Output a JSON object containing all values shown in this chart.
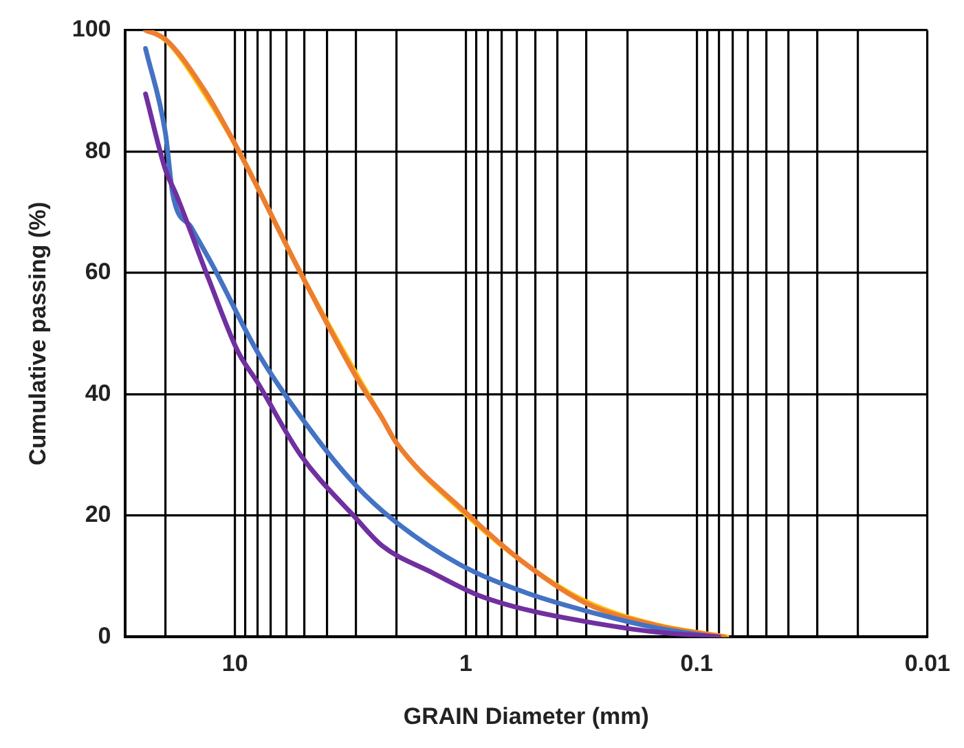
{
  "chart_data": {
    "type": "line",
    "xlabel": "GRAIN Diameter (mm)",
    "ylabel": "Cumulative passing (%)",
    "log": "x",
    "xlim": [
      30,
      0.01
    ],
    "ylim": [
      0,
      100
    ],
    "yticks": [
      0,
      20,
      40,
      60,
      80,
      100
    ],
    "xticks": [
      {
        "value": 20,
        "label": null
      },
      10,
      {
        "value": 9,
        "label": null
      },
      {
        "value": 8,
        "label": null
      },
      {
        "value": 7,
        "label": null
      },
      {
        "value": 6,
        "label": null
      },
      {
        "value": 5,
        "label": null
      },
      {
        "value": 4,
        "label": null
      },
      {
        "value": 3,
        "label": null
      },
      {
        "value": 2,
        "label": null
      },
      1,
      {
        "value": 0.9,
        "label": null
      },
      {
        "value": 0.8,
        "label": null
      },
      {
        "value": 0.7,
        "label": null
      },
      {
        "value": 0.6,
        "label": null
      },
      {
        "value": 0.5,
        "label": null
      },
      {
        "value": 0.4,
        "label": null
      },
      {
        "value": 0.3,
        "label": null
      },
      {
        "value": 0.2,
        "label": null
      },
      0.1,
      {
        "value": 0.09,
        "label": null
      },
      {
        "value": 0.08,
        "label": null
      },
      {
        "value": 0.07,
        "label": null
      },
      {
        "value": 0.06,
        "label": null
      },
      {
        "value": 0.05,
        "label": null
      },
      {
        "value": 0.04,
        "label": null
      },
      {
        "value": 0.03,
        "label": null
      },
      {
        "value": 0.02,
        "label": null
      },
      0.01
    ],
    "grid": true,
    "legend": false,
    "marker": "none",
    "line_style": "solid",
    "series": [
      {
        "color": "#7030a0",
        "x": [
          24.4,
          20,
          18,
          13,
          9.7,
          8,
          5.2,
          3,
          2.3,
          1.4,
          0.9,
          0.55,
          0.3,
          0.15,
          0.08
        ],
        "values": [
          89.5,
          77,
          73,
          59,
          47,
          42,
          30,
          19.6,
          15,
          10.6,
          7,
          4.5,
          2.5,
          0.8,
          0
        ]
      },
      {
        "color": "#4472c4",
        "x": [
          24.4,
          20,
          18.6,
          15.4,
          12.4,
          8,
          4.9,
          3,
          2.05,
          1.07,
          0.55,
          0.27,
          0.15,
          0.084
        ],
        "values": [
          97,
          83,
          73,
          67.4,
          61,
          47,
          35,
          25,
          19.2,
          12,
          7.3,
          3.8,
          1.5,
          0
        ]
      },
      {
        "color": "#ed7d31",
        "x": [
          24.4,
          20,
          13.5,
          9.6,
          5.2,
          3,
          2.3,
          2,
          1.02,
          0.55,
          0.3,
          0.15,
          0.076
        ],
        "values": [
          100,
          98.5,
          90,
          80,
          60,
          43,
          36,
          32,
          20.8,
          12,
          5.5,
          1.9,
          0
        ]
      },
      {
        "color": "#ffc000",
        "x": [
          23.5,
          19.5,
          13.5,
          9.6,
          5.2,
          3,
          2.3,
          2,
          1.02,
          0.55,
          0.3,
          0.15,
          0.074
        ],
        "values": [
          100,
          98,
          89.5,
          80,
          60,
          43.5,
          36,
          32,
          20.5,
          12,
          5.8,
          2,
          0
        ]
      }
    ]
  }
}
